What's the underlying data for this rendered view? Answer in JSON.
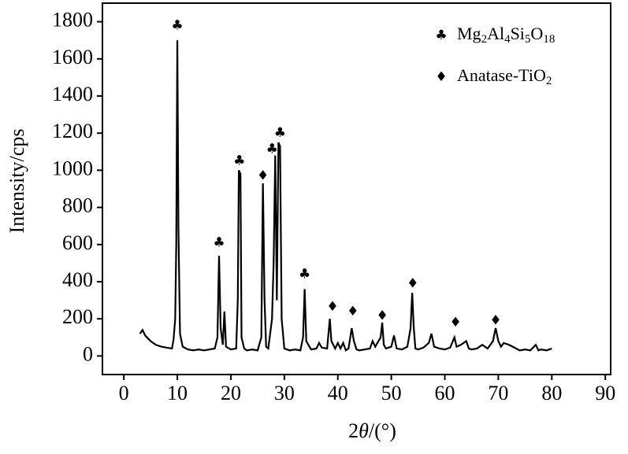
{
  "chart_data": {
    "type": "line",
    "x_label": "2θ/(°)",
    "y_label": "Intensity/cps",
    "xlim": [
      -4,
      91
    ],
    "ylim": [
      -100,
      1900
    ],
    "xticks": [
      0,
      10,
      20,
      30,
      40,
      50,
      60,
      70,
      80,
      90
    ],
    "yticks": [
      0,
      200,
      400,
      600,
      800,
      1000,
      1200,
      1400,
      1600,
      1800
    ],
    "series": [
      {
        "color": "#000000",
        "x": [
          3,
          3.5,
          4,
          5,
          6,
          7,
          8,
          9,
          9.3,
          9.6,
          9.8,
          10,
          10.2,
          10.5,
          11,
          12,
          13,
          14,
          15,
          16,
          17,
          17.5,
          17.8,
          18.1,
          18.5,
          18.8,
          19.1,
          20,
          21,
          21.3,
          21.5,
          21.8,
          22,
          22.5,
          23,
          24,
          25,
          25.7,
          26,
          26.3,
          26.6,
          27,
          27.7,
          28,
          28.3,
          28.6,
          28.9,
          29.2,
          29.5,
          30,
          31,
          32,
          33,
          33.5,
          33.8,
          34.1,
          35,
          36,
          36.5,
          37,
          38,
          38.5,
          38.8,
          39.5,
          40,
          40.5,
          41,
          41.5,
          42,
          42.6,
          43,
          43.5,
          44,
          45,
          46,
          46.5,
          47,
          48,
          48.3,
          48.6,
          49,
          50,
          50.5,
          51,
          52,
          53,
          53.6,
          53.9,
          54.2,
          54.5,
          55,
          56,
          57,
          57.5,
          58,
          59,
          60,
          61,
          61.8,
          62.2,
          63,
          64,
          64.5,
          65,
          66,
          67,
          68,
          69,
          69.5,
          70,
          70.5,
          71,
          72,
          73,
          74,
          75,
          76,
          77,
          77.5,
          78,
          79,
          80
        ],
        "values": [
          120,
          140,
          110,
          80,
          60,
          50,
          45,
          40,
          90,
          200,
          600,
          1700,
          700,
          120,
          50,
          35,
          30,
          35,
          30,
          35,
          40,
          100,
          540,
          150,
          60,
          240,
          50,
          35,
          40,
          300,
          1000,
          980,
          100,
          40,
          30,
          35,
          30,
          100,
          930,
          300,
          50,
          40,
          200,
          500,
          1080,
          300,
          1150,
          1130,
          200,
          40,
          30,
          35,
          30,
          100,
          360,
          80,
          35,
          40,
          70,
          45,
          40,
          200,
          80,
          40,
          70,
          40,
          70,
          30,
          40,
          150,
          80,
          35,
          30,
          35,
          40,
          80,
          50,
          100,
          180,
          60,
          40,
          50,
          110,
          40,
          35,
          50,
          150,
          340,
          150,
          40,
          35,
          45,
          70,
          120,
          50,
          40,
          35,
          45,
          100,
          50,
          60,
          80,
          40,
          35,
          40,
          60,
          40,
          80,
          150,
          80,
          50,
          70,
          60,
          45,
          30,
          35,
          30,
          60,
          30,
          35,
          30,
          40
        ]
      }
    ],
    "legend": [
      {
        "symbol": "♣",
        "label": "Mg2Al4Si5O18"
      },
      {
        "symbol": "♦",
        "label": "Anatase-TiO2"
      }
    ],
    "markers": [
      {
        "symbol": "♣",
        "x": 10,
        "y": 1780
      },
      {
        "symbol": "♣",
        "x": 17.8,
        "y": 610
      },
      {
        "symbol": "♣",
        "x": 21.6,
        "y": 1050
      },
      {
        "symbol": "♦",
        "x": 26,
        "y": 970
      },
      {
        "symbol": "♣",
        "x": 27.7,
        "y": 1115
      },
      {
        "symbol": "♣",
        "x": 29.2,
        "y": 1200
      },
      {
        "symbol": "♣",
        "x": 33.8,
        "y": 440
      },
      {
        "symbol": "♦",
        "x": 39,
        "y": 265
      },
      {
        "symbol": "♦",
        "x": 42.8,
        "y": 240
      },
      {
        "symbol": "♦",
        "x": 48.3,
        "y": 215
      },
      {
        "symbol": "♦",
        "x": 54,
        "y": 390
      },
      {
        "symbol": "♦",
        "x": 62,
        "y": 180
      },
      {
        "symbol": "♦",
        "x": 69.5,
        "y": 190
      }
    ]
  }
}
